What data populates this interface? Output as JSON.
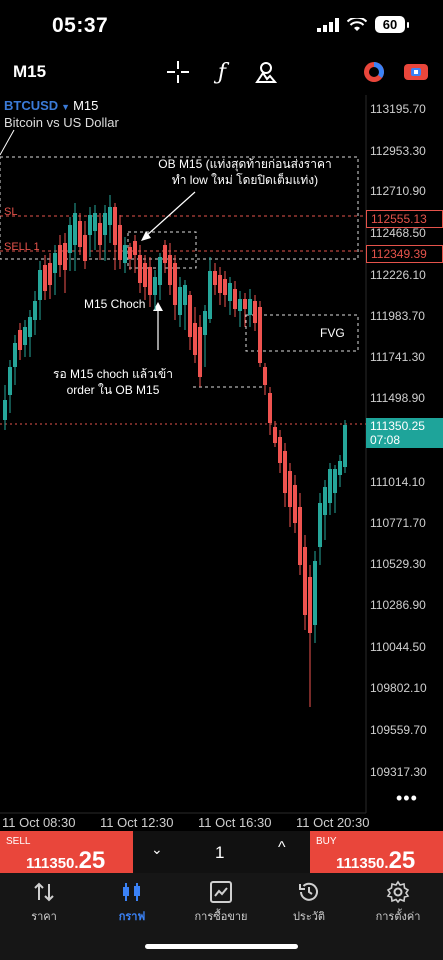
{
  "status_bar": {
    "time": "05:37",
    "battery": "60"
  },
  "toolbar": {
    "timeframe": "M15",
    "icons": [
      "crosshair-icon",
      "function-icon",
      "shapes-icon",
      "timer-icon",
      "account-toggle-icon"
    ]
  },
  "symbol": {
    "ticker": "BTCUSD",
    "timeframe": "M15",
    "description": "Bitcoin vs US Dollar"
  },
  "price_axis": {
    "labels": [
      "113195.70",
      "112953.30",
      "112710.90",
      "112468.50",
      "112226.10",
      "111983.70",
      "111741.30",
      "111498.90",
      "111014.10",
      "110771.70",
      "110529.30",
      "110286.90",
      "110044.50",
      "109802.10",
      "109559.70",
      "109317.30"
    ],
    "sl_price": "112555.13",
    "sell1_price": "112349.39",
    "current_price": "111350.25",
    "countdown": "07:08"
  },
  "time_axis": {
    "labels": [
      "11 Oct 08:30",
      "11 Oct 12:30",
      "11 Oct 16:30",
      "11 Oct 20:30"
    ]
  },
  "levels": {
    "sl": "SL",
    "sell1": "SELL 1"
  },
  "annotations": {
    "ob_line1": "OB M15 (แท่งสุดท้ายก่อนส่งราคา",
    "ob_line2": "ทำ low ใหม่ โดยปิดเต็มแท่ง)",
    "choch": "M15 Choch",
    "wait_line1": "รอ M15 choch แล้วเข้า",
    "wait_line2": "order ใน OB M15",
    "fvg": "FVG"
  },
  "order_panel": {
    "sell_label": "SELL",
    "sell_price_main": "111350.",
    "sell_price_big": "25",
    "buy_label": "BUY",
    "buy_price_main": "111350.",
    "buy_price_big": "25",
    "quantity": "1"
  },
  "bottom_nav": {
    "items": [
      {
        "label": "ราคา",
        "icon": "quotes-icon"
      },
      {
        "label": "กราฟ",
        "icon": "chart-icon"
      },
      {
        "label": "การซื้อขาย",
        "icon": "trade-icon"
      },
      {
        "label": "ประวัติ",
        "icon": "history-icon"
      },
      {
        "label": "การตั้งค่า",
        "icon": "settings-icon"
      }
    ],
    "active_index": 1
  },
  "colors": {
    "bull": "#26a69a",
    "bear": "#ef5350",
    "accent": "#3b82f6",
    "sell": "#e9463b"
  }
}
